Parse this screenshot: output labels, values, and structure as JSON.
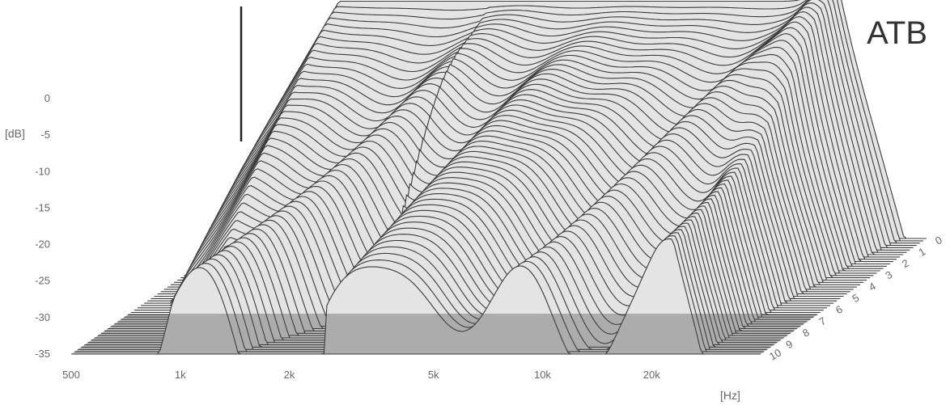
{
  "chart_data": {
    "type": "waterfall-3d",
    "brand_label": "ATB",
    "y_unit_label": "[dB]",
    "x_unit_label": "[Hz]",
    "y_ticks": [
      "0",
      "-5",
      "-10",
      "-15",
      "-20",
      "-25",
      "-30",
      "-35"
    ],
    "y_range": [
      -35,
      0
    ],
    "x_ticks": [
      "500",
      "1k",
      "2k",
      "5k",
      "10k",
      "20k"
    ],
    "x_tick_values": [
      500,
      1000,
      2000,
      5000,
      10000,
      20000
    ],
    "x_range": [
      500,
      40000
    ],
    "z_ticks": [
      "0",
      "1",
      "2",
      "3",
      "4",
      "5",
      "6",
      "7",
      "8",
      "9",
      "10"
    ],
    "z_range": [
      0,
      10
    ],
    "colors": {
      "surface": "#e4e4e4",
      "contour": "#3a3a3a",
      "floor": "#444444",
      "gap": "#d6d6d6"
    }
  }
}
